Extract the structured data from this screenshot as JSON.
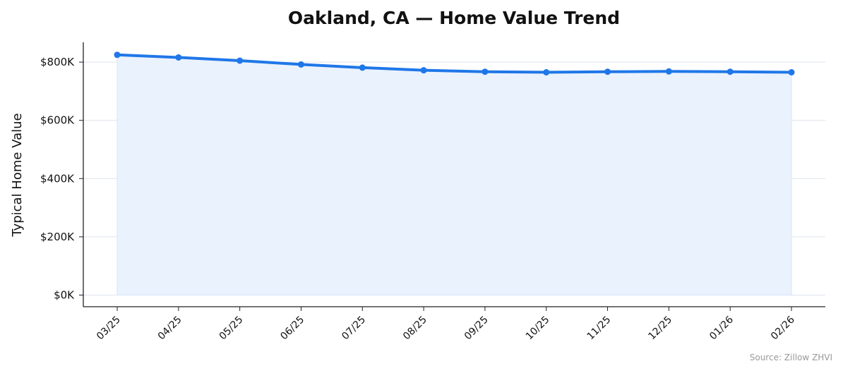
{
  "chart_data": {
    "type": "area",
    "title": "Oakland, CA — Home Value Trend",
    "xlabel": "",
    "ylabel": "Typical Home Value",
    "categories": [
      "03/25",
      "04/25",
      "05/25",
      "06/25",
      "07/25",
      "08/25",
      "09/25",
      "10/25",
      "11/25",
      "12/25",
      "01/26",
      "02/26"
    ],
    "values": [
      825000,
      816000,
      805000,
      792000,
      781000,
      772000,
      767000,
      765000,
      767000,
      768000,
      767000,
      765000
    ],
    "ylim": [
      -40000,
      868000
    ],
    "yticks": [
      0,
      200000,
      400000,
      600000,
      800000
    ],
    "ytick_labels": [
      "$0K",
      "$200K",
      "$400K",
      "$600K",
      "$800K"
    ],
    "grid": "horizontal",
    "legend": "none",
    "source": "Source: Zillow ZHVI",
    "colors": {
      "line": "#1f77e8",
      "fill": "#eaf2fe",
      "grid": "#dde3ec",
      "axis": "#222222"
    }
  }
}
